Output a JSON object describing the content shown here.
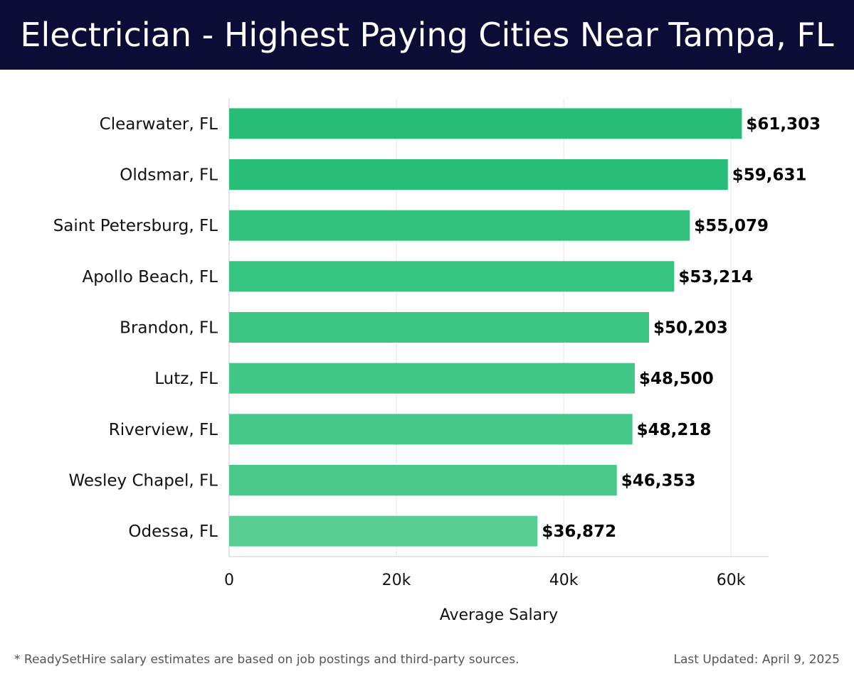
{
  "header": {
    "title": "Electrician - Highest Paying Cities Near Tampa, FL"
  },
  "chart_data": {
    "type": "bar",
    "orientation": "horizontal",
    "title": "Electrician - Highest Paying Cities Near Tampa, FL",
    "xlabel": "Average Salary",
    "ylabel": "",
    "xlim": [
      0,
      64500
    ],
    "grid": true,
    "categories": [
      "Clearwater, FL",
      "Oldsmar, FL",
      "Saint Petersburg, FL",
      "Apollo Beach, FL",
      "Brandon, FL",
      "Lutz, FL",
      "Riverview, FL",
      "Wesley Chapel, FL",
      "Odessa, FL"
    ],
    "values": [
      61303,
      59631,
      55079,
      53214,
      50203,
      48500,
      48218,
      46353,
      36872
    ],
    "value_labels": [
      "$61,303",
      "$59,631",
      "$55,079",
      "$53,214",
      "$50,203",
      "$48,500",
      "$48,218",
      "$46,353",
      "$36,872"
    ],
    "x_ticks": [
      0,
      20000,
      40000,
      60000
    ],
    "x_tick_labels": [
      "0",
      "20k",
      "40k",
      "60k"
    ],
    "colors": [
      "#27bd76",
      "#2abf78",
      "#33c27d",
      "#36c480",
      "#3cc583",
      "#41c786",
      "#45c888",
      "#4bc98b",
      "#5acd95"
    ]
  },
  "footer": {
    "note": "* ReadySetHire salary estimates are based on job postings and third-party sources.",
    "updated": "Last Updated: April 9, 2025"
  }
}
